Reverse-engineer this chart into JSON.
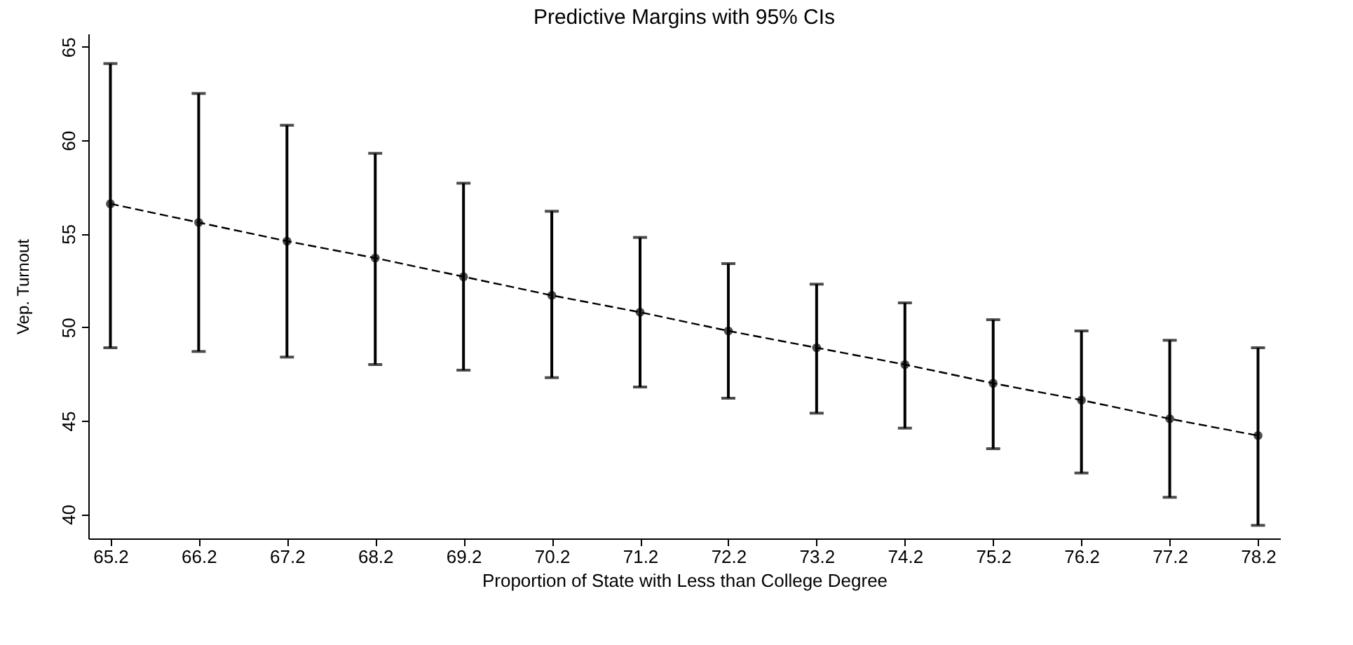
{
  "chart_data": {
    "type": "line",
    "title": "Predictive Margins with 95% CIs",
    "xlabel": "Proportion of State with Less than College Degree",
    "ylabel": "Vep. Turnout",
    "x": [
      65.2,
      66.2,
      67.2,
      68.2,
      69.2,
      70.2,
      71.2,
      72.2,
      73.2,
      74.2,
      75.2,
      76.2,
      77.2,
      78.2
    ],
    "series": [
      {
        "color": "#000000",
        "values": [
          56.6,
          55.6,
          54.6,
          53.7,
          52.7,
          51.7,
          50.8,
          49.8,
          48.9,
          48.0,
          47.0,
          46.1,
          45.1,
          44.2
        ],
        "errors": [
          [
            48.9,
            64.1
          ],
          [
            48.7,
            62.5
          ],
          [
            48.4,
            60.8
          ],
          [
            48.0,
            59.3
          ],
          [
            47.7,
            57.7
          ],
          [
            47.3,
            56.2
          ],
          [
            46.8,
            54.8
          ],
          [
            46.2,
            53.4
          ],
          [
            45.4,
            52.3
          ],
          [
            44.6,
            51.3
          ],
          [
            43.5,
            50.4
          ],
          [
            42.2,
            49.8
          ],
          [
            40.9,
            49.3
          ],
          [
            39.4,
            48.9
          ]
        ]
      }
    ],
    "xlim": [
      64.95,
      78.45
    ],
    "xticks": [
      65.2,
      66.2,
      67.2,
      68.2,
      69.2,
      70.2,
      71.2,
      72.2,
      73.2,
      74.2,
      75.2,
      76.2,
      77.2,
      78.2
    ],
    "ylim": [
      38.7,
      65.7
    ],
    "yticks": [
      40,
      45,
      50,
      55,
      60,
      65
    ],
    "grid": false,
    "marker": "circle",
    "line_style": "dashed"
  }
}
